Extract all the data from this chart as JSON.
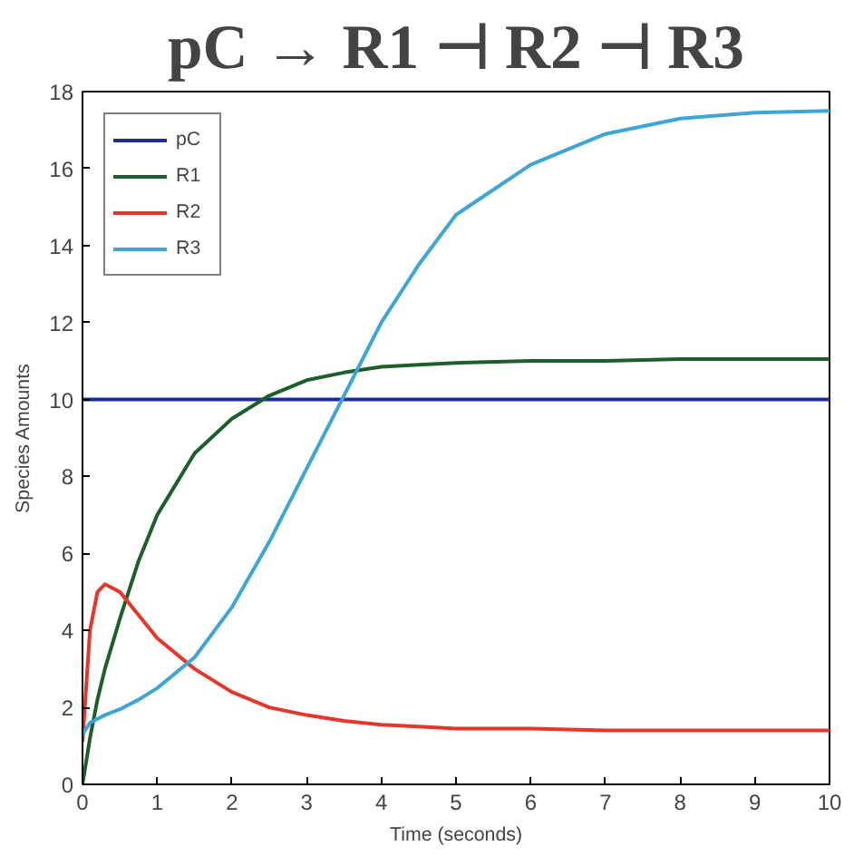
{
  "chart_data": {
    "type": "line",
    "title": "pC → R1 ⊣ R2 ⊣ R3",
    "xlabel": "Time (seconds)",
    "ylabel": "Species Amounts",
    "x": [
      0,
      0.1,
      0.2,
      0.3,
      0.5,
      0.75,
      1,
      1.5,
      2,
      2.5,
      3,
      3.5,
      4,
      4.5,
      5,
      6,
      7,
      8,
      9,
      10
    ],
    "series": [
      {
        "name": "pC",
        "color": "#1f2a9c",
        "values": [
          10,
          10,
          10,
          10,
          10,
          10,
          10,
          10,
          10,
          10,
          10,
          10,
          10,
          10,
          10,
          10,
          10,
          10,
          10,
          10
        ]
      },
      {
        "name": "R1",
        "color": "#1d5e2a",
        "values": [
          0,
          1.2,
          2.2,
          3.0,
          4.3,
          5.8,
          7.0,
          8.6,
          9.5,
          10.1,
          10.5,
          10.7,
          10.85,
          10.9,
          10.95,
          11.0,
          11.0,
          11.05,
          11.05,
          11.05
        ]
      },
      {
        "name": "R2",
        "color": "#e8352a",
        "values": [
          1.1,
          4.0,
          5.0,
          5.2,
          5.0,
          4.4,
          3.8,
          3.0,
          2.4,
          2.0,
          1.8,
          1.65,
          1.55,
          1.5,
          1.45,
          1.45,
          1.4,
          1.4,
          1.4,
          1.4
        ]
      },
      {
        "name": "R3",
        "color": "#3ea6d6",
        "values": [
          1.3,
          1.6,
          1.7,
          1.8,
          1.95,
          2.2,
          2.5,
          3.3,
          4.6,
          6.3,
          8.2,
          10.1,
          12.0,
          13.5,
          14.8,
          16.1,
          16.9,
          17.3,
          17.45,
          17.5
        ]
      }
    ],
    "xlim": [
      0,
      10
    ],
    "ylim": [
      0,
      18
    ],
    "xticks": [
      0,
      1,
      2,
      3,
      4,
      5,
      6,
      7,
      8,
      9,
      10
    ],
    "yticks": [
      0,
      2,
      4,
      6,
      8,
      10,
      12,
      14,
      16,
      18
    ],
    "grid": false,
    "legend": "top left",
    "marker": "none",
    "line_style": "solid"
  }
}
